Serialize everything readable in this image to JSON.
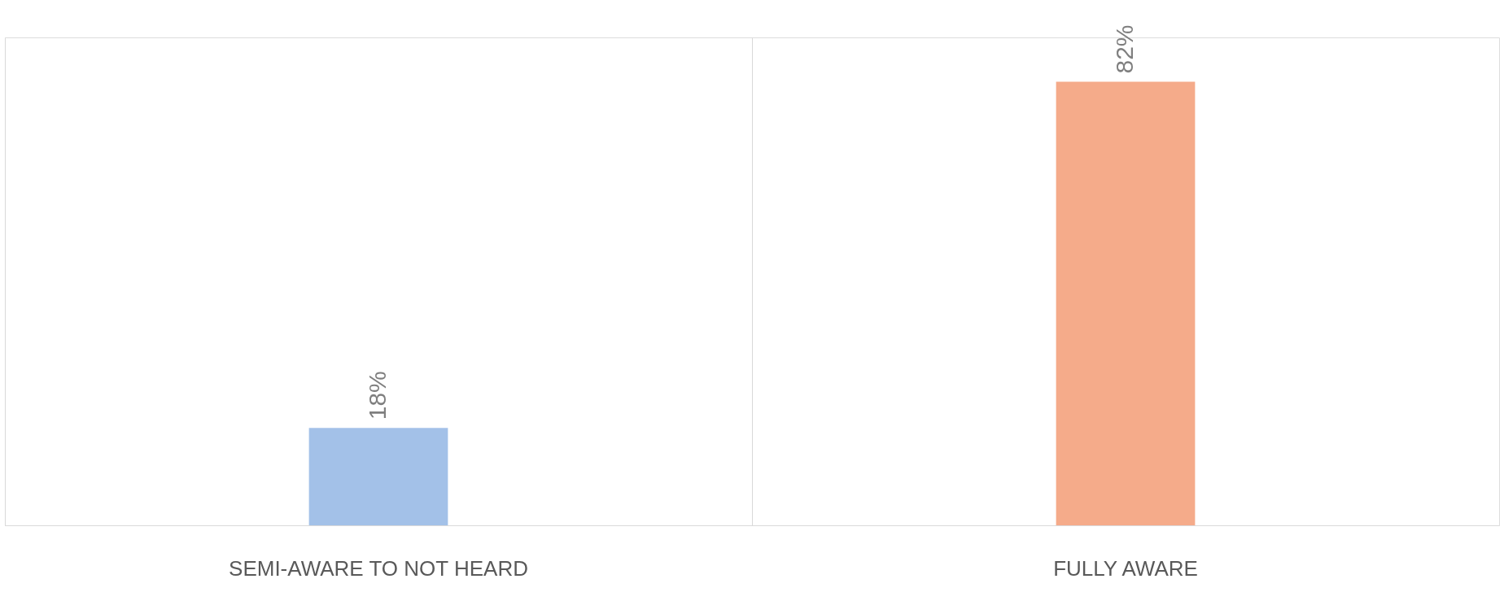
{
  "chart_data": {
    "type": "bar",
    "categories": [
      "SEMI-AWARE TO NOT HEARD",
      "FULLY AWARE"
    ],
    "values": [
      18,
      82
    ],
    "colors": [
      "#a3c1e8",
      "#f5ab8a"
    ],
    "value_labels": [
      "18%",
      "82%"
    ],
    "grid": "x"
  }
}
